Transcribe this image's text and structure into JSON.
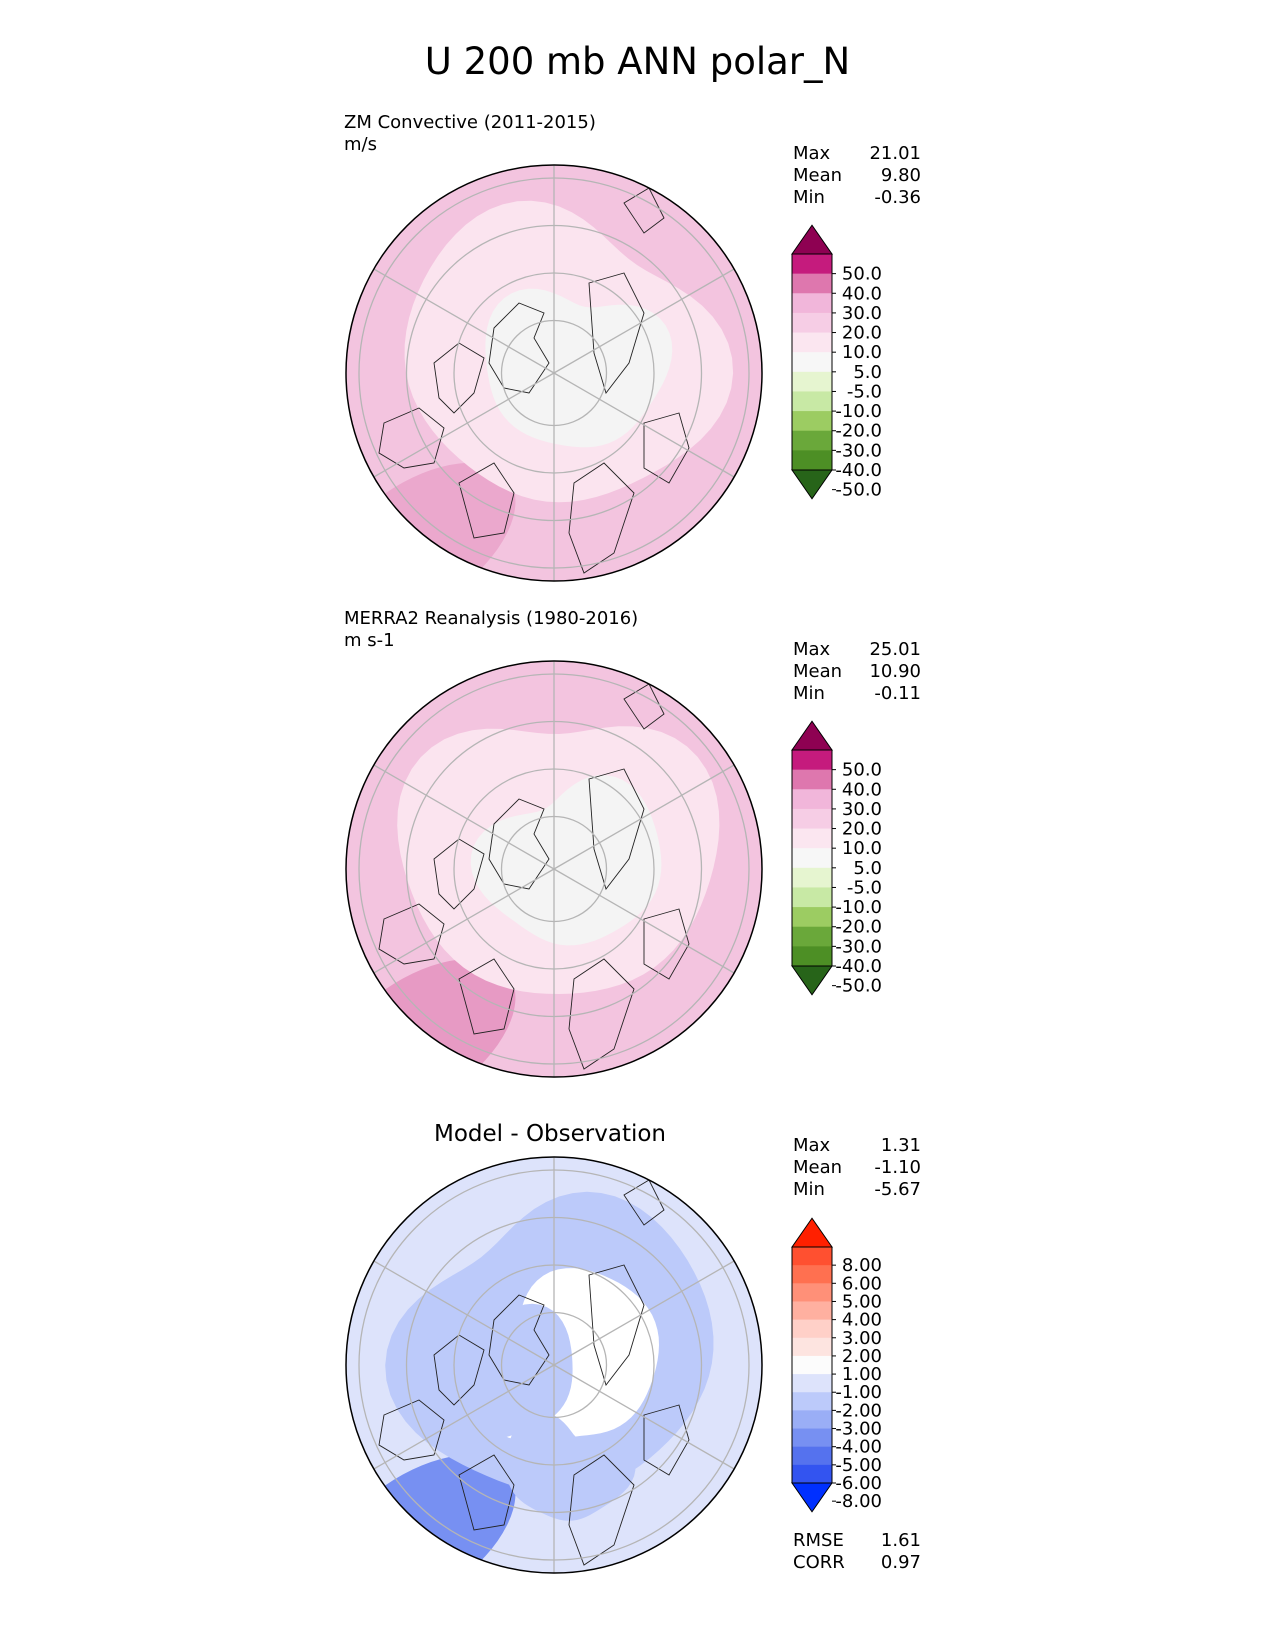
{
  "title": "U 200 mb ANN polar_N",
  "panels": [
    {
      "label_line1": "ZM Convective (2011-2015)",
      "label_line2": "m/s",
      "stats": [
        {
          "name": "Max",
          "value": "21.01"
        },
        {
          "name": "Mean",
          "value": "9.80"
        },
        {
          "name": "Min",
          "value": "-0.36"
        }
      ],
      "colorbar": {
        "ticks": [
          "50.0",
          "40.0",
          "30.0",
          "20.0",
          "10.0",
          "5.0",
          "-5.0",
          "-10.0",
          "-20.0",
          "-30.0",
          "-40.0",
          "-50.0"
        ],
        "colors": [
          "#8e0152",
          "#c51b7d",
          "#de77ae",
          "#f1b6da",
          "#f6cde5",
          "#fbe6f0",
          "#f7f7f7",
          "#e6f5d0",
          "#c8e9a5",
          "#9ccc62",
          "#6aa83a",
          "#4d8f25",
          "#276419"
        ]
      },
      "regions": {
        "outer": "#f3c4df",
        "mid": "#fbe4ef",
        "inner": "#f4f4f4",
        "edge": "#eba8cd"
      }
    },
    {
      "label_line1": "MERRA2 Reanalysis (1980-2016)",
      "label_line2": "m s-1",
      "stats": [
        {
          "name": "Max",
          "value": "25.01"
        },
        {
          "name": "Mean",
          "value": "10.90"
        },
        {
          "name": "Min",
          "value": "-0.11"
        }
      ],
      "colorbar": {
        "ticks": [
          "50.0",
          "40.0",
          "30.0",
          "20.0",
          "10.0",
          "5.0",
          "-5.0",
          "-10.0",
          "-20.0",
          "-30.0",
          "-40.0",
          "-50.0"
        ],
        "colors": [
          "#8e0152",
          "#c51b7d",
          "#de77ae",
          "#f1b6da",
          "#f6cde5",
          "#fbe6f0",
          "#f7f7f7",
          "#e6f5d0",
          "#c8e9a5",
          "#9ccc62",
          "#6aa83a",
          "#4d8f25",
          "#276419"
        ]
      },
      "regions": {
        "outer": "#f3c4df",
        "mid": "#fbe4ef",
        "inner": "#f4f4f4",
        "edge": "#e79ac4"
      }
    },
    {
      "title": "Model - Observation",
      "stats": [
        {
          "name": "Max",
          "value": "1.31"
        },
        {
          "name": "Mean",
          "value": "-1.10"
        },
        {
          "name": "Min",
          "value": "-5.67"
        }
      ],
      "colorbar": {
        "ticks": [
          "8.00",
          "6.00",
          "5.00",
          "4.00",
          "3.00",
          "2.00",
          "1.00",
          "-1.00",
          "-2.00",
          "-3.00",
          "-4.00",
          "-5.00",
          "-6.00",
          "-8.00"
        ],
        "colors": [
          "#ff2000",
          "#ff5030",
          "#ff7050",
          "#ff9078",
          "#ffb0a0",
          "#ffd0c8",
          "#fde4e0",
          "#fcfcfc",
          "#dde3fb",
          "#bccafa",
          "#9aaef6",
          "#7790f2",
          "#5572ee",
          "#3354f0",
          "#0030ff"
        ]
      },
      "regions": {
        "outer": "#dde3fb",
        "mid": "#bccafa",
        "inner": "#ffffff",
        "edge": "#7790f2"
      },
      "summary": [
        {
          "name": "RMSE",
          "value": "1.61"
        },
        {
          "name": "CORR",
          "value": "0.97"
        }
      ]
    }
  ]
}
